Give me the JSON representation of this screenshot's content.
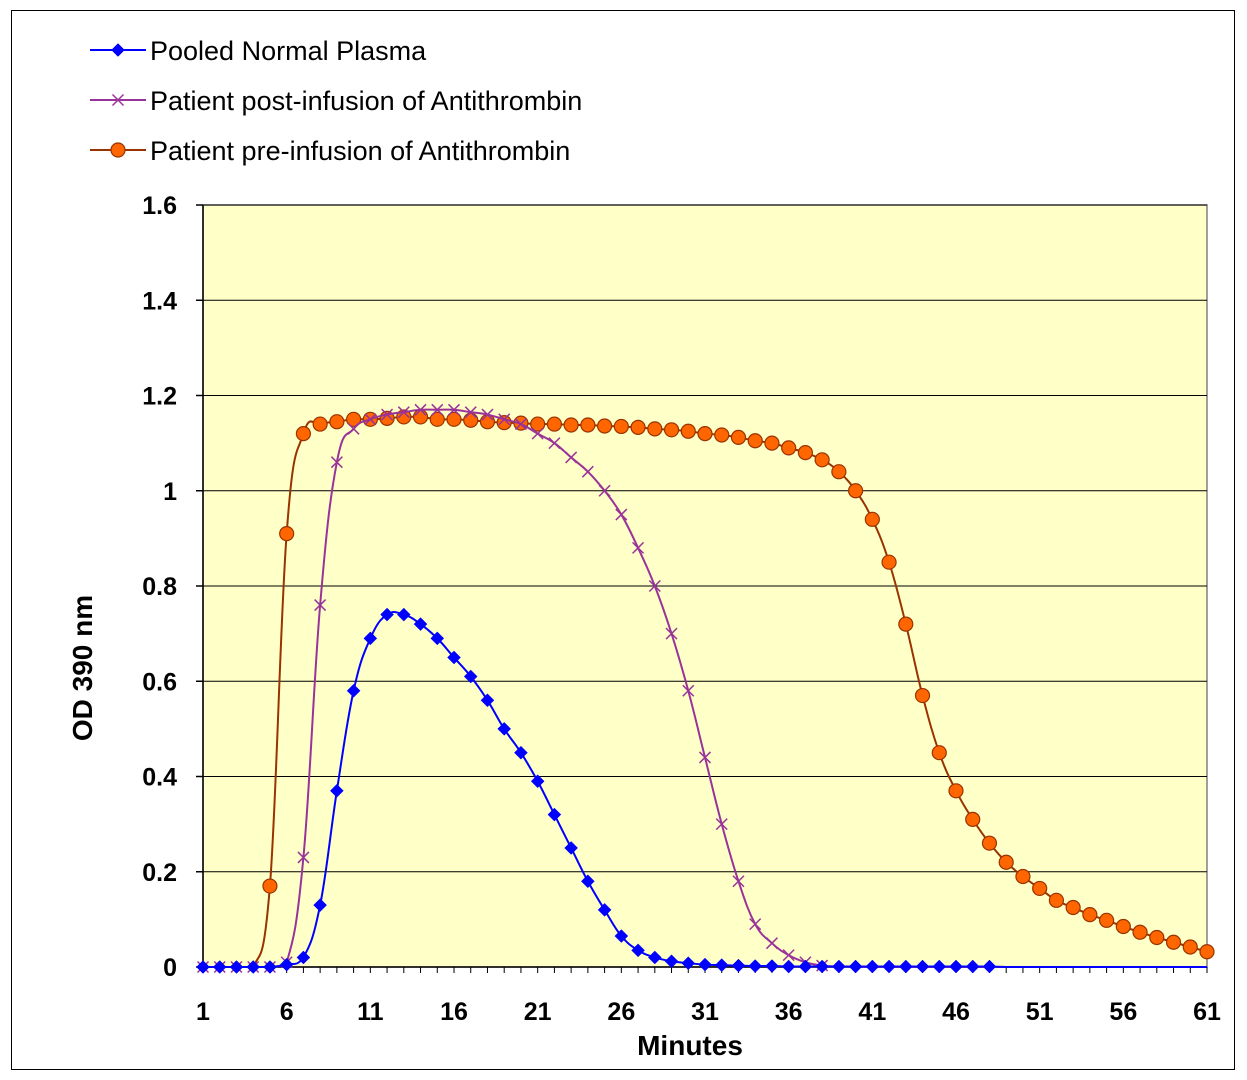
{
  "chart_data": {
    "type": "line",
    "title": "",
    "xlabel": "Minutes",
    "ylabel": "OD 390 nm",
    "xlim": [
      1,
      61
    ],
    "ylim": [
      0,
      1.6
    ],
    "x_ticks": [
      "1",
      "6",
      "11",
      "16",
      "21",
      "26",
      "31",
      "36",
      "41",
      "46",
      "51",
      "56",
      "61"
    ],
    "y_ticks": [
      "0",
      "0.2",
      "0.4",
      "0.6",
      "0.8",
      "1",
      "1.2",
      "1.4",
      "1.6"
    ],
    "y_tick_values": [
      0,
      0.2,
      0.4,
      0.6,
      0.8,
      1,
      1.2,
      1.4,
      1.6
    ],
    "x_tick_values": [
      1,
      6,
      11,
      16,
      21,
      26,
      31,
      36,
      41,
      46,
      51,
      56,
      61
    ],
    "grid": "horizontal",
    "plot_background": "#ffffc8",
    "legend_position": "top-left",
    "series": [
      {
        "name": "Pooled Normal Plasma",
        "color": "#0000ff",
        "marker": "diamond",
        "x": [
          1,
          2,
          3,
          4,
          5,
          6,
          7,
          8,
          9,
          10,
          11,
          12,
          13,
          14,
          15,
          16,
          17,
          18,
          19,
          20,
          21,
          22,
          23,
          24,
          25,
          26,
          27,
          28,
          29,
          30,
          31,
          32,
          33,
          34,
          35,
          36,
          37,
          38,
          39,
          40,
          41,
          42,
          43,
          44,
          45,
          46,
          47,
          48,
          49,
          50,
          51,
          52,
          53,
          54,
          55,
          56,
          57,
          58,
          59,
          60,
          61
        ],
        "values": [
          0,
          0,
          0,
          0,
          0,
          0.005,
          0.02,
          0.13,
          0.37,
          0.58,
          0.69,
          0.74,
          0.74,
          0.72,
          0.69,
          0.65,
          0.61,
          0.56,
          0.5,
          0.45,
          0.39,
          0.32,
          0.25,
          0.18,
          0.12,
          0.065,
          0.035,
          0.02,
          0.012,
          0.008,
          0.005,
          0.004,
          0.003,
          0.002,
          0.002,
          0.001,
          0.001,
          0.001,
          0.001,
          0.001,
          0.001,
          0.001,
          0.001,
          0.001,
          0.001,
          0.001,
          0.001,
          0.001,
          0,
          0,
          0,
          0,
          0,
          0,
          0,
          0,
          0,
          0,
          0,
          0,
          0
        ],
        "marker_range": [
          1,
          48
        ]
      },
      {
        "name": "Patient post-infusion of Antithrombin",
        "color": "#993399",
        "marker": "x",
        "x": [
          1,
          2,
          3,
          4,
          5,
          6,
          7,
          8,
          9,
          10,
          11,
          12,
          13,
          14,
          15,
          16,
          17,
          18,
          19,
          20,
          21,
          22,
          23,
          24,
          25,
          26,
          27,
          28,
          29,
          30,
          31,
          32,
          33,
          34,
          35,
          36,
          37,
          38,
          39,
          40,
          41,
          42,
          43,
          44,
          45,
          46,
          47,
          48,
          49,
          50,
          51,
          52,
          53,
          54,
          55,
          56,
          57,
          58,
          59,
          60,
          61
        ],
        "values": [
          0,
          0,
          0,
          0,
          0,
          0.01,
          0.23,
          0.76,
          1.06,
          1.13,
          1.15,
          1.16,
          1.165,
          1.17,
          1.17,
          1.17,
          1.165,
          1.16,
          1.15,
          1.14,
          1.12,
          1.1,
          1.07,
          1.04,
          1,
          0.95,
          0.88,
          0.8,
          0.7,
          0.58,
          0.44,
          0.3,
          0.18,
          0.09,
          0.05,
          0.025,
          0.01,
          0.003,
          0.001,
          0,
          0,
          0,
          0,
          0,
          0,
          0,
          0,
          0,
          0,
          0,
          0,
          0,
          0,
          0,
          0,
          0,
          0,
          0,
          0,
          0,
          0
        ],
        "marker_range": [
          1,
          38
        ]
      },
      {
        "name": "Patient pre-infusion of Antithrombin",
        "color": "#993300",
        "marker": "circle",
        "marker_fill": "#ff6600",
        "x": [
          1,
          2,
          3,
          4,
          5,
          6,
          7,
          8,
          9,
          10,
          11,
          12,
          13,
          14,
          15,
          16,
          17,
          18,
          19,
          20,
          21,
          22,
          23,
          24,
          25,
          26,
          27,
          28,
          29,
          30,
          31,
          32,
          33,
          34,
          35,
          36,
          37,
          38,
          39,
          40,
          41,
          42,
          43,
          44,
          45,
          46,
          47,
          48,
          49,
          50,
          51,
          52,
          53,
          54,
          55,
          56,
          57,
          58,
          59,
          60,
          61
        ],
        "values": [
          0,
          0,
          0,
          0,
          0.17,
          0.91,
          1.12,
          1.14,
          1.145,
          1.15,
          1.15,
          1.152,
          1.155,
          1.155,
          1.15,
          1.15,
          1.148,
          1.145,
          1.143,
          1.142,
          1.14,
          1.14,
          1.138,
          1.138,
          1.136,
          1.135,
          1.133,
          1.13,
          1.128,
          1.125,
          1.12,
          1.117,
          1.112,
          1.105,
          1.1,
          1.09,
          1.08,
          1.065,
          1.04,
          1,
          0.94,
          0.85,
          0.72,
          0.57,
          0.45,
          0.37,
          0.31,
          0.26,
          0.22,
          0.19,
          0.165,
          0.14,
          0.125,
          0.11,
          0.098,
          0.085,
          0.073,
          0.062,
          0.052,
          0.042,
          0.032
        ],
        "marker_range": [
          5,
          61
        ]
      }
    ]
  }
}
